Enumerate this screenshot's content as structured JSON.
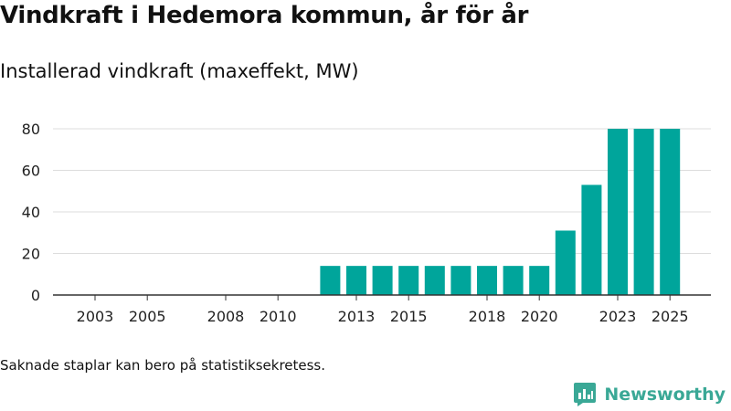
{
  "title": "Vindkraft i Hedemora kommun, år för år",
  "subtitle": "Installerad vindkraft (maxeffekt, MW)",
  "footnote": "Saknade staplar kan bero på statistiksekretess.",
  "brand": {
    "name": "Newsworthy",
    "logo_icon": "bar-chart-speech-bubble-icon",
    "color": "#3aa896"
  },
  "colors": {
    "bar": "#00a59b",
    "grid": "#dddddd",
    "axis": "#333333"
  },
  "chart_data": {
    "type": "bar",
    "title": "Vindkraft i Hedemora kommun, år för år",
    "ylabel": "Installerad vindkraft (maxeffekt, MW)",
    "xlabel": "",
    "categories": [
      2003,
      2004,
      2005,
      2006,
      2007,
      2008,
      2009,
      2010,
      2011,
      2012,
      2013,
      2014,
      2015,
      2016,
      2017,
      2018,
      2019,
      2020,
      2021,
      2022,
      2023,
      2024,
      2025
    ],
    "values": [
      null,
      null,
      null,
      null,
      null,
      null,
      null,
      null,
      null,
      14,
      14,
      14,
      14,
      14,
      14,
      14,
      14,
      14,
      31,
      53,
      80,
      80,
      80
    ],
    "x_tick_labels": [
      "2003",
      "2005",
      "2008",
      "2010",
      "2013",
      "2015",
      "2018",
      "2020",
      "2023",
      "2025"
    ],
    "y_ticks": [
      0,
      20,
      40,
      60,
      80
    ],
    "ylim": [
      0,
      80
    ],
    "grid": true,
    "legend": "none"
  }
}
